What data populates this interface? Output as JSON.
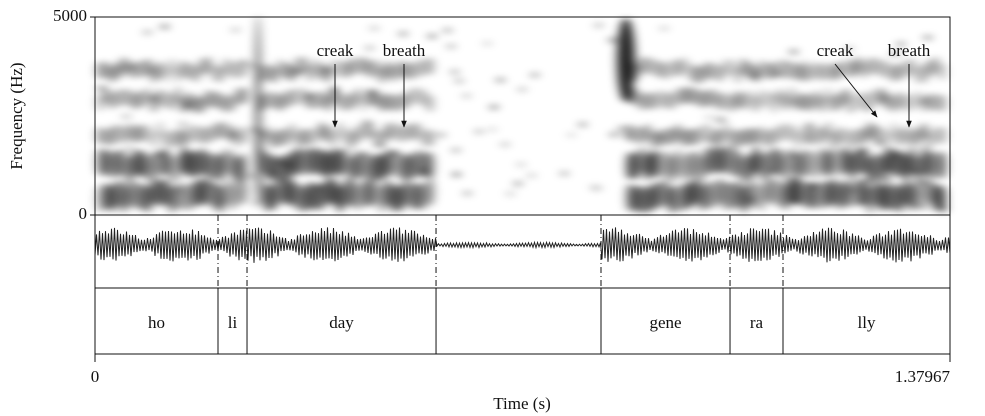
{
  "chart_data": {
    "type": "spectrogram",
    "ylabel": "Frequency (Hz)",
    "xlabel": "Time (s)",
    "xlim": [
      0,
      1.37967
    ],
    "ylim": [
      0,
      5000
    ],
    "xticks": [
      0,
      1.37967
    ],
    "yticks": [
      0,
      5000
    ],
    "segments": {
      "labels": [
        "ho",
        "li",
        "day",
        null,
        "gene",
        "ra",
        "lly"
      ],
      "boundaries": [
        0.1985,
        0.2453,
        0.5503,
        0.8165,
        1.0247,
        1.1102
      ]
    },
    "annotations": [
      "creak",
      "breath",
      "creak",
      "breath"
    ]
  }
}
